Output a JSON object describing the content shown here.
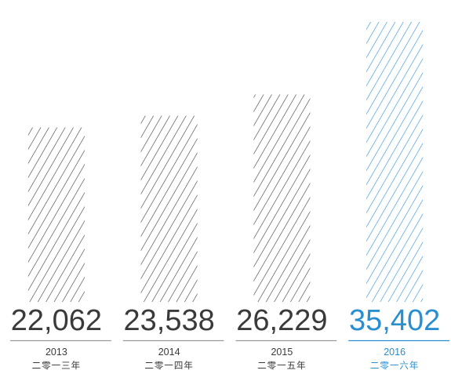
{
  "colors": {
    "default": "#3a3a3a",
    "highlight": "#2a8fd0",
    "divider": "#9a9a9a"
  },
  "chart_data": {
    "type": "bar",
    "categories": [
      "2013",
      "2014",
      "2015",
      "2016"
    ],
    "category_sublabels": [
      "二零一三年",
      "二零一四年",
      "二零一五年",
      "二零一六年"
    ],
    "values": [
      22062,
      23538,
      26229,
      35402
    ],
    "value_labels": [
      "22,062",
      "23,538",
      "26,229",
      "35,402"
    ],
    "highlight_index": 3,
    "fill_pattern": "diagonal-hatch",
    "grid": false,
    "legend": "none",
    "xlabel": "",
    "ylabel": "",
    "title": ""
  }
}
